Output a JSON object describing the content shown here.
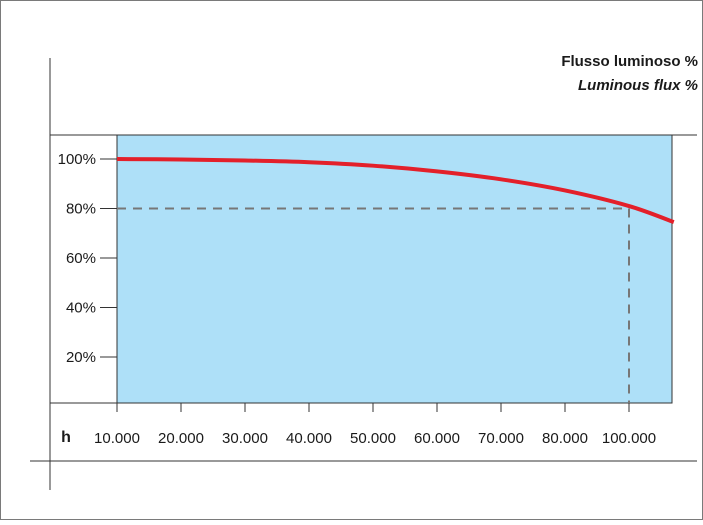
{
  "chart_data": {
    "type": "line",
    "title": "Flusso luminoso %",
    "subtitle": "Luminous flux %",
    "xlabel": "h",
    "ylabel": "",
    "x_tick_labels": [
      "10.000",
      "20.000",
      "30.000",
      "40.000",
      "50.000",
      "60.000",
      "70.000",
      "80.000",
      "100.000"
    ],
    "y_tick_labels": [
      "100%",
      "80%",
      "60%",
      "40%",
      "20%"
    ],
    "y_ticks": [
      100,
      80,
      60,
      40,
      20
    ],
    "ylim": [
      0,
      110
    ],
    "grid": false,
    "legend": "none",
    "series": [
      {
        "x_index": [
          0,
          1,
          2,
          3,
          4,
          5,
          6,
          7,
          8,
          8.7
        ],
        "values": [
          100,
          99.8,
          99.4,
          98.7,
          97.3,
          95.0,
          91.8,
          87.3,
          81.0,
          74.5
        ]
      }
    ],
    "reference": {
      "x_label": "100.000",
      "y": 80
    },
    "colors": {
      "plot_background": "#aee0f8",
      "line": "#e3202a",
      "reference_line": "#777777",
      "axis": "#333333",
      "frame": "#7a7a7a"
    }
  }
}
